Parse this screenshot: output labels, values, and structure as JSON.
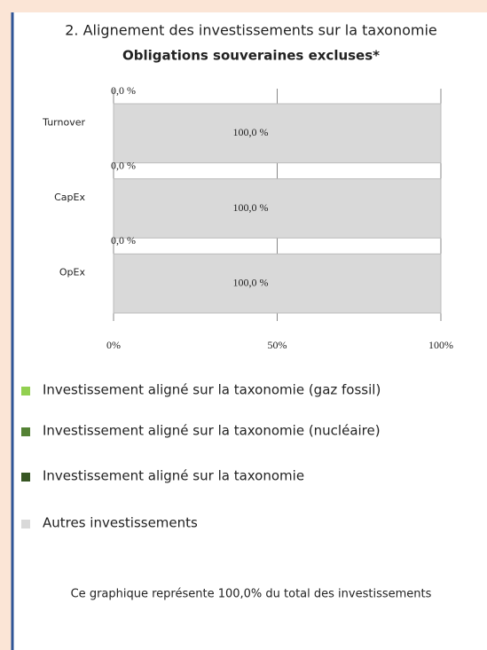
{
  "chart_data": {
    "type": "stacked-barh",
    "title": "2. Alignement des investissements sur la taxonomie",
    "subtitle": "Obligations souveraines excluses*",
    "categories": [
      "Turnover",
      "CapEx",
      "OpEx"
    ],
    "series": [
      {
        "name": "Investissement aligné sur la taxonomie (gaz fossil)",
        "color": "#92d050",
        "values": [
          0,
          0,
          0
        ]
      },
      {
        "name": "Investissement aligné sur la taxonomie (nucléaire)",
        "color": "#548235",
        "values": [
          0,
          0,
          0
        ]
      },
      {
        "name": "Investissement aligné sur la taxonomie",
        "color": "#375623",
        "values": [
          0,
          0,
          0
        ],
        "value_labels": [
          "0,0 %",
          "0,0 %",
          "0,0 %"
        ]
      },
      {
        "name": "Autres investissements",
        "color": "#d9d9d9",
        "values": [
          100,
          100,
          100
        ],
        "value_labels": [
          "100,0 %",
          "100,0 %",
          "100,0 %"
        ]
      }
    ],
    "xlim": [
      0,
      100
    ],
    "xticks": [
      {
        "value": 0,
        "label": "0%"
      },
      {
        "value": 50,
        "label": "50%"
      },
      {
        "value": 100,
        "label": "100%"
      }
    ],
    "grid": true,
    "note": "Ce graphique représente 100,0% du total des investissements"
  }
}
